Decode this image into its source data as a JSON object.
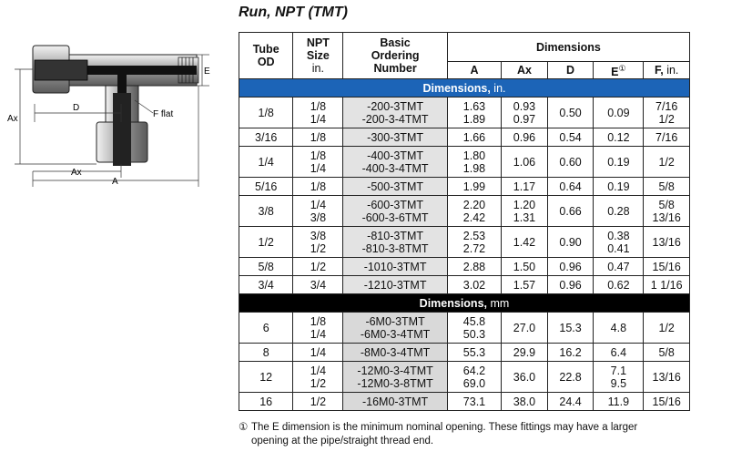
{
  "title": "Run, NPT (TMT)",
  "diagram": {
    "labels": {
      "ax_vertical": "Ax",
      "d": "D",
      "f_flat": "F flat",
      "e": "E",
      "ax_horizontal": "Ax",
      "a": "A"
    }
  },
  "table": {
    "headers": {
      "tube_od": [
        "Tube",
        "OD"
      ],
      "npt_size": [
        "NPT",
        "Size",
        "in."
      ],
      "basic_ordering": [
        "Basic",
        "Ordering",
        "Number"
      ],
      "dimensions": "Dimensions",
      "a": "A",
      "ax": "Ax",
      "d": "D",
      "e": "E",
      "e_mark": "①",
      "f": "F,",
      "f_unit": "in."
    },
    "section_in": {
      "label": "Dimensions,",
      "unit": "in."
    },
    "section_mm": {
      "label": "Dimensions,",
      "unit": "mm"
    },
    "rows_in": [
      {
        "od": "1/8",
        "npt": [
          "1/8",
          "1/4"
        ],
        "order": [
          "-200-3TMT",
          "-200-3-4TMT"
        ],
        "a": [
          "1.63",
          "1.89"
        ],
        "ax": [
          "0.93",
          "0.97"
        ],
        "d": [
          "0.50"
        ],
        "e": [
          "0.09"
        ],
        "f": [
          "7/16",
          "1/2"
        ]
      },
      {
        "od": "3/16",
        "npt": [
          "1/8"
        ],
        "order": [
          "-300-3TMT"
        ],
        "a": [
          "1.66"
        ],
        "ax": [
          "0.96"
        ],
        "d": [
          "0.54"
        ],
        "e": [
          "0.12"
        ],
        "f": [
          "7/16"
        ]
      },
      {
        "od": "1/4",
        "npt": [
          "1/8",
          "1/4"
        ],
        "order": [
          "-400-3TMT",
          " -400-3-4TMT"
        ],
        "a": [
          "1.80",
          "1.98"
        ],
        "ax": [
          "1.06"
        ],
        "d": [
          "0.60"
        ],
        "e": [
          "0.19"
        ],
        "f": [
          "1/2"
        ]
      },
      {
        "od": "5/16",
        "npt": [
          "1/8"
        ],
        "order": [
          "-500-3TMT"
        ],
        "a": [
          "1.99"
        ],
        "ax": [
          "1.17"
        ],
        "d": [
          "0.64"
        ],
        "e": [
          "0.19"
        ],
        "f": [
          "5/8"
        ]
      },
      {
        "od": "3/8",
        "npt": [
          "1/4",
          "3/8"
        ],
        "order": [
          "-600-3TMT",
          "-600-3-6TMT"
        ],
        "a": [
          "2.20",
          "2.42"
        ],
        "ax": [
          "1.20",
          "1.31"
        ],
        "d": [
          "0.66"
        ],
        "e": [
          "0.28"
        ],
        "f": [
          "5/8",
          "13/16"
        ]
      },
      {
        "od": "1/2",
        "npt": [
          "3/8",
          "1/2"
        ],
        "order": [
          "-810-3TMT",
          "-810-3-8TMT"
        ],
        "a": [
          "2.53",
          "2.72"
        ],
        "ax": [
          "1.42"
        ],
        "d": [
          "0.90"
        ],
        "e": [
          "0.38",
          "0.41"
        ],
        "f": [
          "13/16"
        ]
      },
      {
        "od": "5/8",
        "npt": [
          "1/2"
        ],
        "order": [
          "-1010-3TMT"
        ],
        "a": [
          "2.88"
        ],
        "ax": [
          "1.50"
        ],
        "d": [
          "0.96"
        ],
        "e": [
          "0.47"
        ],
        "f": [
          "15/16"
        ]
      },
      {
        "od": "3/4",
        "npt": [
          "3/4"
        ],
        "order": [
          "-1210-3TMT"
        ],
        "a": [
          "3.02"
        ],
        "ax": [
          "1.57"
        ],
        "d": [
          "0.96"
        ],
        "e": [
          "0.62"
        ],
        "f": [
          "1 1/16"
        ]
      }
    ],
    "rows_mm": [
      {
        "od": "6",
        "npt": [
          "1/8",
          "1/4"
        ],
        "order": [
          "-6M0-3TMT",
          "-6M0-3-4TMT"
        ],
        "a": [
          "45.8",
          "50.3"
        ],
        "ax": [
          "27.0"
        ],
        "d": [
          "15.3"
        ],
        "e": [
          "4.8"
        ],
        "f": [
          "1/2"
        ]
      },
      {
        "od": "8",
        "npt": [
          "1/4"
        ],
        "order": [
          "-8M0-3-4TMT"
        ],
        "a": [
          "55.3"
        ],
        "ax": [
          "29.9"
        ],
        "d": [
          "16.2"
        ],
        "e": [
          "6.4"
        ],
        "f": [
          "5/8"
        ]
      },
      {
        "od": "12",
        "npt": [
          "1/4",
          "1/2"
        ],
        "order": [
          "-12M0-3-4TMT",
          "-12M0-3-8TMT"
        ],
        "a": [
          "64.2",
          "69.0"
        ],
        "ax": [
          "36.0"
        ],
        "d": [
          "22.8"
        ],
        "e": [
          "7.1",
          "9.5"
        ],
        "f": [
          "13/16"
        ]
      },
      {
        "od": "16",
        "npt": [
          "1/2"
        ],
        "order": [
          "-16M0-3TMT"
        ],
        "a": [
          "73.1"
        ],
        "ax": [
          "38.0"
        ],
        "d": [
          "24.4"
        ],
        "e": [
          "11.9"
        ],
        "f": [
          "15/16"
        ]
      }
    ]
  },
  "footnote": {
    "mark": "①",
    "line1": "The E dimension is the minimum nominal opening. These fittings may have a larger",
    "line2": "opening at the pipe/straight thread end."
  }
}
